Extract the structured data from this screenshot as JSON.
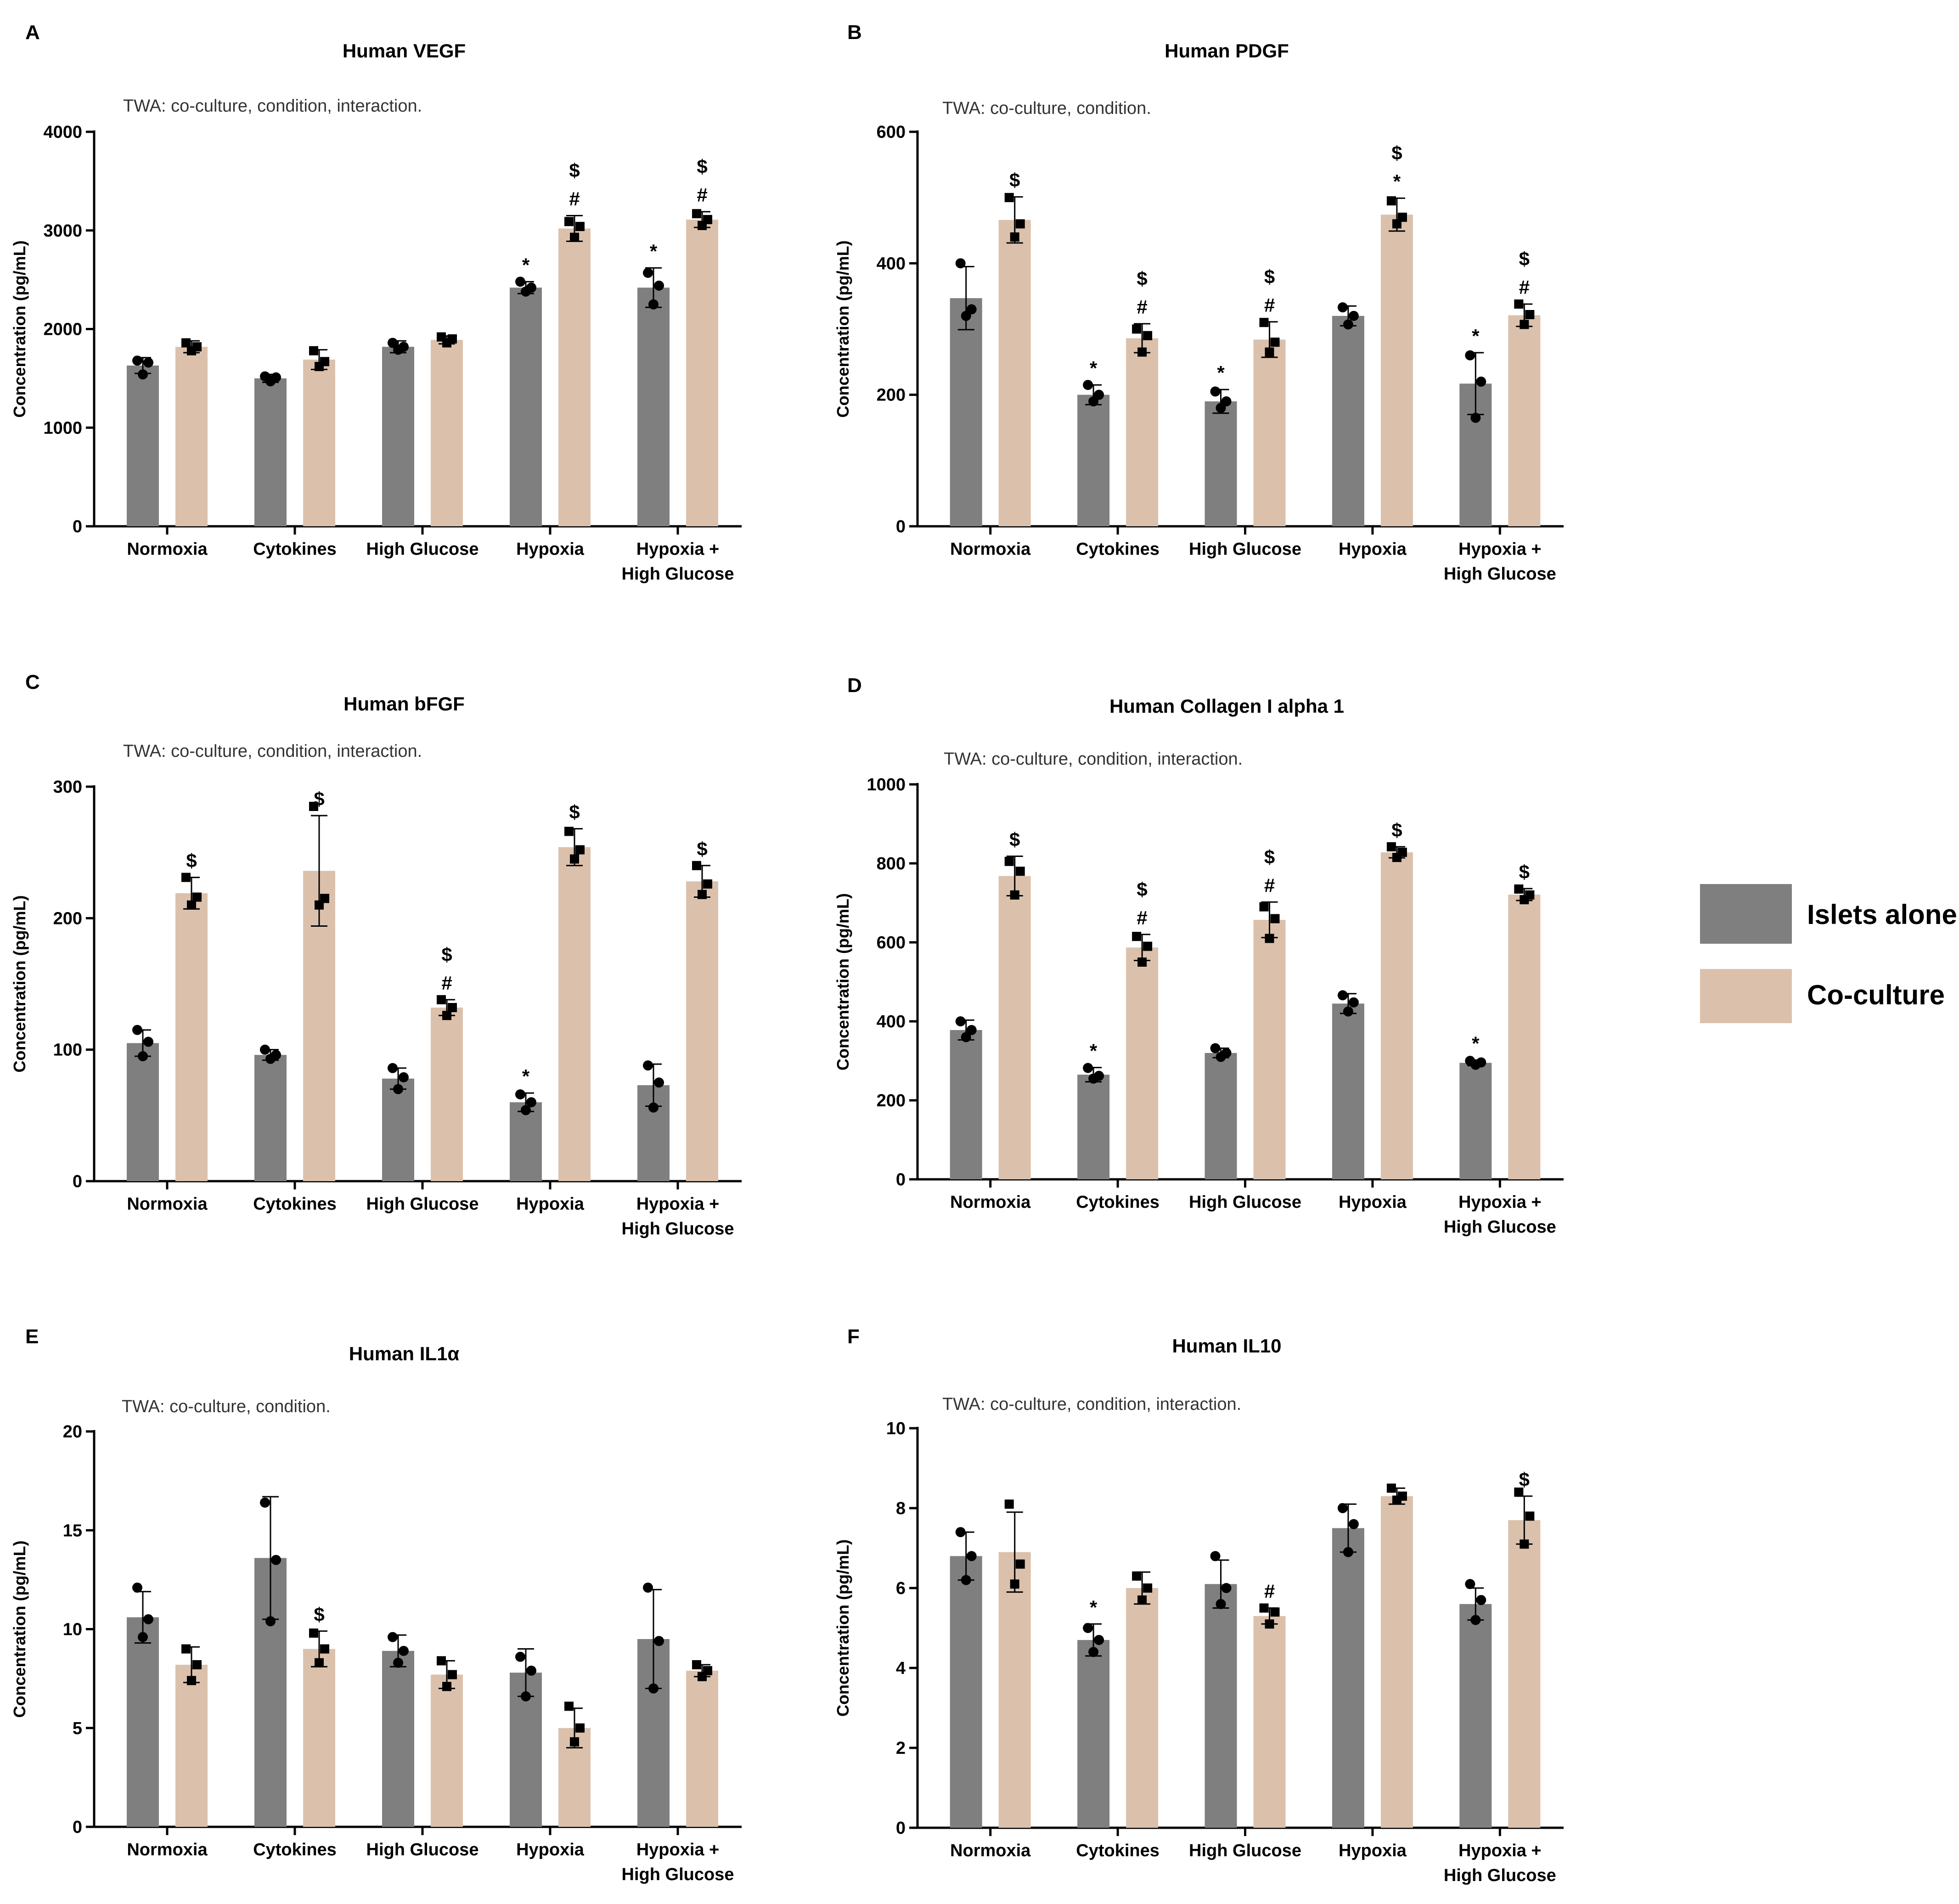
{
  "legend": {
    "islets_label": "Islets alone",
    "coculture_label": "Co-culture"
  },
  "colors": {
    "islets": "#7f7f7f",
    "coculture": "#dbc1ac",
    "axis": "#000000",
    "point": "#000000"
  },
  "chart_data": [
    {
      "panel": "A",
      "type": "bar",
      "title": "Human VEGF",
      "note": "TWA: co-culture, condition, interaction.",
      "ylabel": "Concentration (pg/mL)",
      "ylim": [
        0,
        4000
      ],
      "yticks": [
        0,
        1000,
        2000,
        3000,
        4000
      ],
      "categories": [
        "Normoxia",
        "Cytokines",
        "High Glucose",
        "Hypoxia",
        "Hypoxia +|High Glucose"
      ],
      "series": [
        {
          "name": "Islets alone",
          "values": [
            1630,
            1500,
            1820,
            2420,
            2420
          ],
          "errors": [
            80,
            40,
            60,
            60,
            200
          ],
          "points": [
            [
              1680,
              1540,
              1660
            ],
            [
              1520,
              1470,
              1510
            ],
            [
              1860,
              1790,
              1820
            ],
            [
              2480,
              2380,
              2420
            ],
            [
              2570,
              2250,
              2440
            ]
          ],
          "annotations": [
            "",
            "",
            "",
            "*",
            "*"
          ]
        },
        {
          "name": "Co-culture",
          "values": [
            1820,
            1690,
            1890,
            3020,
            3110
          ],
          "errors": [
            60,
            100,
            40,
            130,
            80
          ],
          "points": [
            [
              1860,
              1780,
              1820
            ],
            [
              1780,
              1620,
              1670
            ],
            [
              1920,
              1860,
              1900
            ],
            [
              3090,
              2930,
              3040
            ],
            [
              3170,
              3050,
              3110
            ]
          ],
          "annotations": [
            "",
            "",
            "",
            "$|#",
            "$|#"
          ]
        }
      ]
    },
    {
      "panel": "B",
      "type": "bar",
      "title": "Human PDGF",
      "note": "TWA: co-culture, condition.",
      "ylabel": "Concentration (pg/mL)",
      "ylim": [
        0,
        600
      ],
      "yticks": [
        0,
        200,
        400,
        600
      ],
      "categories": [
        "Normoxia",
        "Cytokines",
        "High Glucose",
        "Hypoxia",
        "Hypoxia +|High Glucose"
      ],
      "series": [
        {
          "name": "Islets alone",
          "values": [
            347,
            200,
            190,
            320,
            217
          ],
          "errors": [
            48,
            15,
            18,
            15,
            47
          ],
          "points": [
            [
              400,
              320,
              330
            ],
            [
              215,
              190,
              200
            ],
            [
              205,
              180,
              190
            ],
            [
              333,
              307,
              320
            ],
            [
              260,
              165,
              220
            ]
          ],
          "annotations": [
            "",
            "*",
            "*",
            "",
            "*"
          ]
        },
        {
          "name": "Co-culture",
          "values": [
            466,
            286,
            284,
            474,
            321
          ],
          "errors": [
            35,
            22,
            27,
            25,
            17
          ],
          "points": [
            [
              500,
              440,
              460
            ],
            [
              300,
              265,
              290
            ],
            [
              310,
              265,
              280
            ],
            [
              495,
              460,
              470
            ],
            [
              338,
              307,
              322
            ]
          ],
          "annotations": [
            "$",
            "$|#",
            "$|#",
            "$|*",
            "$|#"
          ]
        }
      ]
    },
    {
      "panel": "C",
      "type": "bar",
      "title": "Human bFGF",
      "note": "TWA: co-culture, condition, interaction.",
      "ylabel": "Concentration (pg/mL)",
      "ylim": [
        0,
        300
      ],
      "yticks": [
        0,
        100,
        200,
        300
      ],
      "categories": [
        "Normoxia",
        "Cytokines",
        "High Glucose",
        "Hypoxia",
        "Hypoxia +|High Glucose"
      ],
      "series": [
        {
          "name": "Islets alone",
          "values": [
            105,
            96,
            78,
            60,
            73
          ],
          "errors": [
            10,
            4,
            8,
            7,
            16
          ],
          "points": [
            [
              115,
              95,
              106
            ],
            [
              100,
              93,
              96
            ],
            [
              86,
              70,
              79
            ],
            [
              66,
              54,
              60
            ],
            [
              88,
              56,
              75
            ]
          ],
          "annotations": [
            "",
            "",
            "",
            "*",
            ""
          ]
        },
        {
          "name": "Co-culture",
          "values": [
            219,
            236,
            132,
            254,
            228
          ],
          "errors": [
            12,
            42,
            6,
            14,
            12
          ],
          "points": [
            [
              231,
              210,
              216
            ],
            [
              285,
              210,
              215
            ],
            [
              138,
              126,
              132
            ],
            [
              266,
              245,
              252
            ],
            [
              240,
              218,
              226
            ]
          ],
          "annotations": [
            "$",
            "$",
            "$|#",
            "$",
            "$"
          ]
        }
      ]
    },
    {
      "panel": "D",
      "type": "bar",
      "title": "Human Collagen I alpha 1",
      "note": "TWA: co-culture, condition, interaction.",
      "ylabel": "Concentration (pg/mL)",
      "ylim": [
        0,
        1000
      ],
      "yticks": [
        0,
        200,
        400,
        600,
        800,
        1000
      ],
      "categories": [
        "Normoxia",
        "Cytokines",
        "High Glucose",
        "Hypoxia",
        "Hypoxia +|High Glucose"
      ],
      "series": [
        {
          "name": "Islets alone",
          "values": [
            378,
            265,
            320,
            445,
            295
          ],
          "errors": [
            25,
            18,
            12,
            25,
            7
          ],
          "points": [
            [
              400,
              360,
              378
            ],
            [
              282,
              255,
              262
            ],
            [
              332,
              310,
              320
            ],
            [
              466,
              425,
              448
            ],
            [
              300,
              290,
              296
            ]
          ],
          "annotations": [
            "",
            "*",
            "",
            "",
            "*"
          ]
        },
        {
          "name": "Co-culture",
          "values": [
            768,
            587,
            657,
            828,
            721
          ],
          "errors": [
            50,
            33,
            45,
            14,
            15
          ],
          "points": [
            [
              805,
              720,
              780
            ],
            [
              615,
              550,
              590
            ],
            [
              690,
              610,
              660
            ],
            [
              842,
              815,
              828
            ],
            [
              735,
              708,
              720
            ]
          ],
          "annotations": [
            "$",
            "$|#",
            "$|#",
            "$",
            "$"
          ]
        }
      ]
    },
    {
      "panel": "E",
      "type": "bar",
      "title": "Human IL1α",
      "note": "TWA: co-culture, condition.",
      "ylabel": "Concentration (pg/mL)",
      "ylim": [
        0,
        20
      ],
      "yticks": [
        0,
        5,
        10,
        15,
        20
      ],
      "categories": [
        "Normoxia",
        "Cytokines",
        "High Glucose",
        "Hypoxia",
        "Hypoxia +|High Glucose"
      ],
      "series": [
        {
          "name": "Islets alone",
          "values": [
            10.6,
            13.6,
            8.9,
            7.8,
            9.5
          ],
          "errors": [
            1.3,
            3.1,
            0.8,
            1.2,
            2.5
          ],
          "points": [
            [
              12.1,
              9.6,
              10.5
            ],
            [
              16.4,
              10.4,
              13.5
            ],
            [
              9.6,
              8.3,
              8.9
            ],
            [
              8.6,
              6.6,
              7.9
            ],
            [
              12.1,
              7.0,
              9.4
            ]
          ],
          "annotations": [
            "",
            "",
            "",
            "",
            ""
          ]
        },
        {
          "name": "Co-culture",
          "values": [
            8.2,
            9.0,
            7.7,
            5.0,
            7.9
          ],
          "errors": [
            0.9,
            0.9,
            0.7,
            1.0,
            0.3
          ],
          "points": [
            [
              9.0,
              7.4,
              8.2
            ],
            [
              9.8,
              8.3,
              9.0
            ],
            [
              8.4,
              7.1,
              7.7
            ],
            [
              6.1,
              4.3,
              5.0
            ],
            [
              8.2,
              7.6,
              7.9
            ]
          ],
          "annotations": [
            "",
            "$",
            "",
            "",
            ""
          ]
        }
      ]
    },
    {
      "panel": "F",
      "type": "bar",
      "title": "Human IL10",
      "note": "TWA: co-culture, condition, interaction.",
      "ylabel": "Concentration (pg/mL)",
      "ylim": [
        0,
        10
      ],
      "yticks": [
        0,
        2,
        4,
        6,
        8,
        10
      ],
      "categories": [
        "Normoxia",
        "Cytokines",
        "High Glucose",
        "Hypoxia",
        "Hypoxia +|High Glucose"
      ],
      "series": [
        {
          "name": "Islets alone",
          "values": [
            6.8,
            4.7,
            6.1,
            7.5,
            5.6
          ],
          "errors": [
            0.6,
            0.4,
            0.6,
            0.6,
            0.4
          ],
          "points": [
            [
              7.4,
              6.2,
              6.8
            ],
            [
              5.0,
              4.4,
              4.7
            ],
            [
              6.8,
              5.6,
              6.0
            ],
            [
              8.0,
              6.9,
              7.6
            ],
            [
              6.1,
              5.2,
              5.7
            ]
          ],
          "annotations": [
            "",
            "*",
            "",
            "",
            ""
          ]
        },
        {
          "name": "Co-culture",
          "values": [
            6.9,
            6.0,
            5.3,
            8.3,
            7.7
          ],
          "errors": [
            1.0,
            0.4,
            0.2,
            0.2,
            0.6
          ],
          "points": [
            [
              8.1,
              6.1,
              6.6
            ],
            [
              6.3,
              5.7,
              6.0
            ],
            [
              5.5,
              5.1,
              5.4
            ],
            [
              8.5,
              8.2,
              8.3
            ],
            [
              8.4,
              7.1,
              7.8
            ]
          ],
          "annotations": [
            "",
            "",
            "#",
            "",
            "$"
          ]
        }
      ]
    }
  ]
}
